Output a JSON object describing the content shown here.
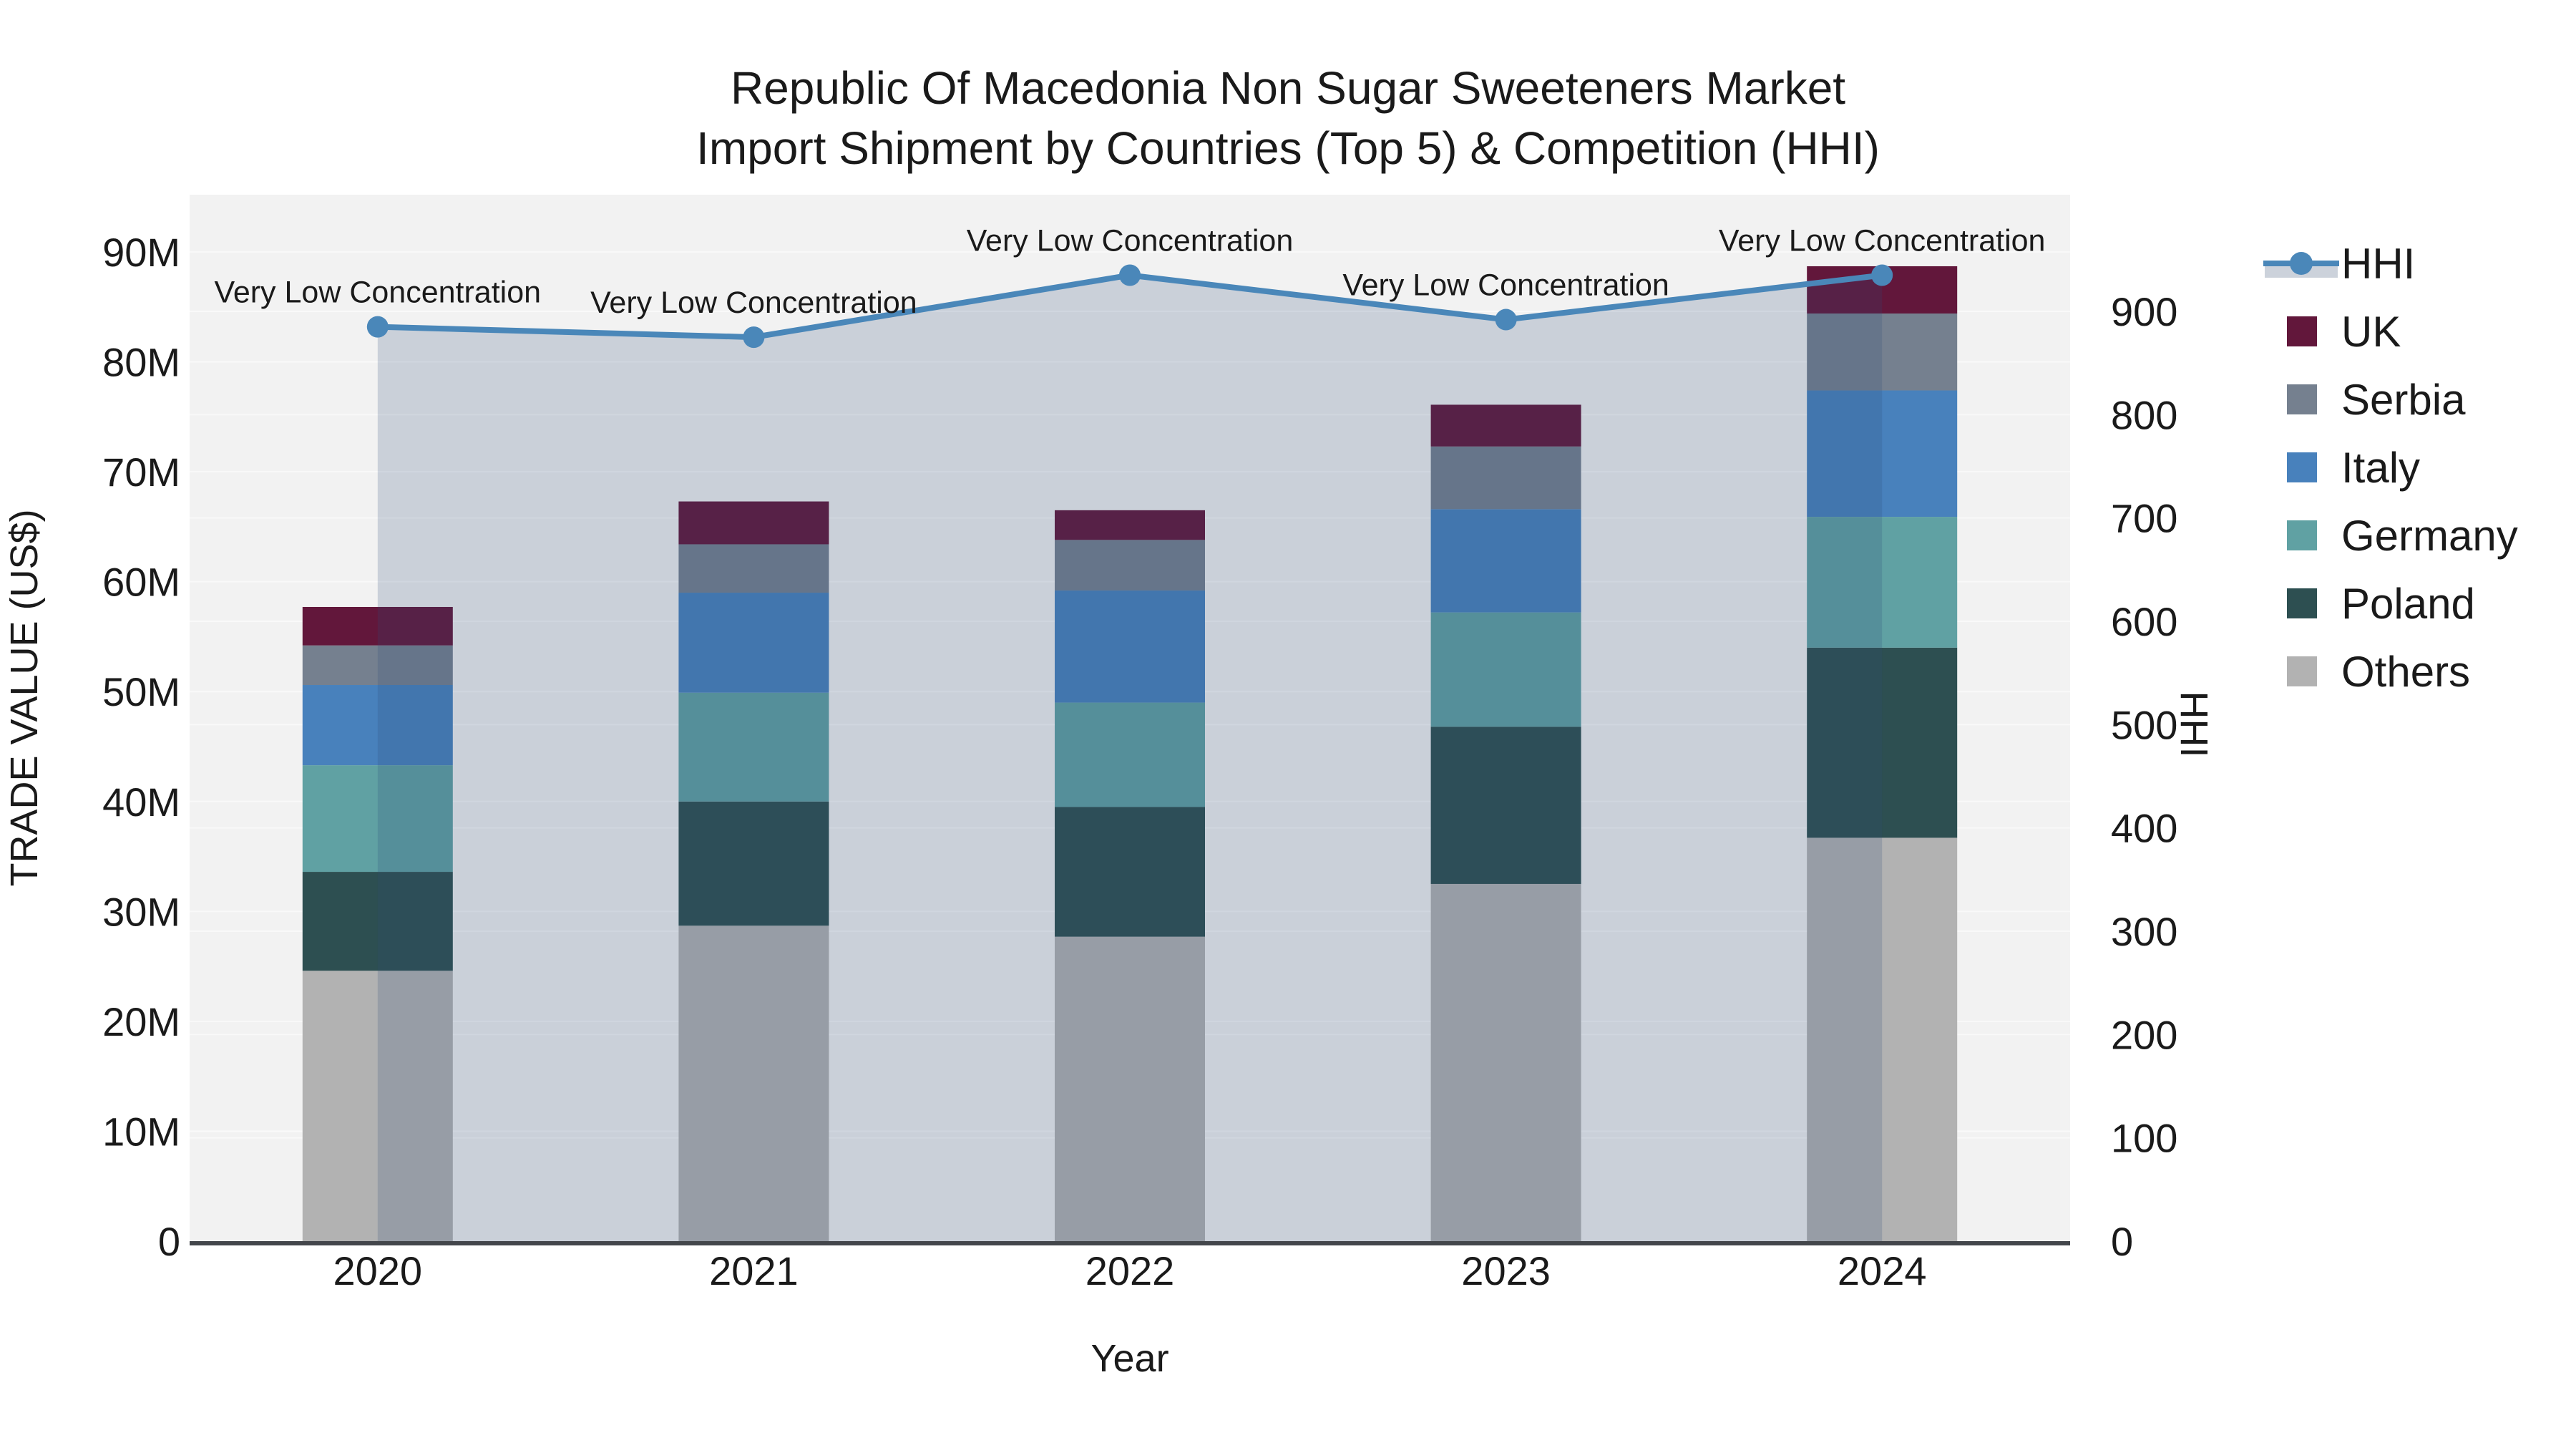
{
  "title": {
    "line1": "Republic Of Macedonia Non Sugar Sweeteners Market",
    "line2": "Import Shipment by Countries (Top 5) & Competition (HHI)"
  },
  "colors": {
    "figure_bg": "#ffffff",
    "plot_bg": "#f2f2f2",
    "gridline": "rgba(255,255,255,0.5)",
    "axis_line": "#43464b",
    "text": "#1a1a1a",
    "hhi_line": "#4a87b9",
    "hhi_area": "rgba(47,73,121,0.20)",
    "hhi_legend_band": "#ccd2db"
  },
  "chart_data": {
    "type": "bar",
    "subtype": "stacked-bars-with-line-overlay",
    "categories": [
      "2020",
      "2021",
      "2022",
      "2023",
      "2024"
    ],
    "series": [
      {
        "name": "UK",
        "color": "#62173b",
        "values": [
          3.5,
          3.9,
          2.7,
          3.8,
          4.3
        ]
      },
      {
        "name": "Serbia",
        "color": "#75808f",
        "values": [
          3.6,
          4.4,
          4.6,
          5.7,
          7.0
        ]
      },
      {
        "name": "Italy",
        "color": "#4881bc",
        "values": [
          7.3,
          9.1,
          10.2,
          9.4,
          11.5
        ]
      },
      {
        "name": "Germany",
        "color": "#60a1a3",
        "values": [
          9.7,
          9.9,
          9.5,
          10.4,
          11.9
        ]
      },
      {
        "name": "Poland",
        "color": "#2d4f51",
        "values": [
          9.0,
          11.3,
          11.8,
          14.3,
          17.3
        ]
      },
      {
        "name": "Others",
        "color": "#b2b2b2",
        "values": [
          24.6,
          28.7,
          27.7,
          32.5,
          36.7
        ]
      }
    ],
    "stack_note": "series listed top-of-stack first; Others is bottom of stack",
    "line_series": {
      "name": "HHI",
      "values": [
        885,
        875,
        935,
        892,
        935
      ],
      "axis": "right"
    },
    "annotations": [
      "Very Low Concentration",
      "Very Low Concentration",
      "Very Low Concentration",
      "Very Low Concentration",
      "Very Low Concentration"
    ],
    "xlabel": "Year",
    "y_left": {
      "label": "TRADE VALUE (US$)",
      "max": 90,
      "ticks": [
        "0",
        "10M",
        "20M",
        "30M",
        "40M",
        "50M",
        "60M",
        "70M",
        "80M",
        "90M"
      ],
      "tick_values": [
        0,
        10,
        20,
        30,
        40,
        50,
        60,
        70,
        80,
        90
      ]
    },
    "y_right": {
      "label": "HHI",
      "max": 900,
      "ticks": [
        "0",
        "100",
        "200",
        "300",
        "400",
        "500",
        "600",
        "700",
        "800",
        "900"
      ],
      "tick_values": [
        0,
        100,
        200,
        300,
        400,
        500,
        600,
        700,
        800,
        900
      ]
    },
    "legend_position": "right",
    "grid": true
  },
  "legend": {
    "entries": [
      {
        "label": "HHI",
        "kind": "line"
      },
      {
        "label": "UK",
        "kind": "swatch"
      },
      {
        "label": "Serbia",
        "kind": "swatch"
      },
      {
        "label": "Italy",
        "kind": "swatch"
      },
      {
        "label": "Germany",
        "kind": "swatch"
      },
      {
        "label": "Poland",
        "kind": "swatch"
      },
      {
        "label": "Others",
        "kind": "swatch"
      }
    ]
  }
}
